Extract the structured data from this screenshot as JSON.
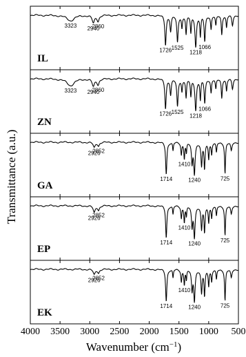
{
  "chart_data": {
    "type": "line",
    "xlabel": "Wavenumber (cm",
    "xlabel_sup": "−1",
    "xlabel_close": ")",
    "ylabel": "Transmittance (a.u.)",
    "xlim": [
      4000,
      500
    ],
    "x_reversed": true,
    "xticks": [
      4000,
      3500,
      3000,
      2500,
      2000,
      1500,
      1000,
      500
    ],
    "panels": [
      {
        "label": "IL",
        "peak_labels": [
          "3323",
          "2940",
          "2860",
          "1726",
          "1525",
          "1218",
          "1066"
        ],
        "peaks": [
          {
            "x": 3323,
            "depth": 0.16,
            "width": 110,
            "text": "3323"
          },
          {
            "x": 2940,
            "depth": 0.22,
            "width": 35,
            "text": "2940"
          },
          {
            "x": 2860,
            "depth": 0.16,
            "width": 30,
            "text": "2860"
          },
          {
            "x": 1726,
            "depth": 0.85,
            "width": 20,
            "text": "1726"
          },
          {
            "x": 1640,
            "depth": 0.45,
            "width": 18
          },
          {
            "x": 1525,
            "depth": 0.78,
            "width": 20,
            "text": "1525"
          },
          {
            "x": 1450,
            "depth": 0.35,
            "width": 15
          },
          {
            "x": 1380,
            "depth": 0.55,
            "width": 15
          },
          {
            "x": 1300,
            "depth": 0.5,
            "width": 15
          },
          {
            "x": 1218,
            "depth": 0.9,
            "width": 22,
            "text": "1218"
          },
          {
            "x": 1140,
            "depth": 0.6,
            "width": 15
          },
          {
            "x": 1066,
            "depth": 0.75,
            "width": 18,
            "text": "1066"
          },
          {
            "x": 960,
            "depth": 0.4,
            "width": 15
          },
          {
            "x": 880,
            "depth": 0.3,
            "width": 15
          },
          {
            "x": 780,
            "depth": 0.55,
            "width": 15
          },
          {
            "x": 700,
            "depth": 0.35,
            "width": 15
          },
          {
            "x": 600,
            "depth": 0.3,
            "width": 20
          }
        ]
      },
      {
        "label": "ZN",
        "peak_labels": [
          "3323",
          "2940",
          "2860",
          "1726",
          "1525",
          "1218",
          "1066"
        ],
        "peaks": [
          {
            "x": 3323,
            "depth": 0.2,
            "width": 110,
            "text": "3323"
          },
          {
            "x": 2940,
            "depth": 0.22,
            "width": 35,
            "text": "2940"
          },
          {
            "x": 2860,
            "depth": 0.16,
            "width": 30,
            "text": "2860"
          },
          {
            "x": 1726,
            "depth": 0.85,
            "width": 20,
            "text": "1726"
          },
          {
            "x": 1640,
            "depth": 0.45,
            "width": 18
          },
          {
            "x": 1525,
            "depth": 0.8,
            "width": 20,
            "text": "1525"
          },
          {
            "x": 1450,
            "depth": 0.35,
            "width": 15
          },
          {
            "x": 1380,
            "depth": 0.55,
            "width": 15
          },
          {
            "x": 1300,
            "depth": 0.5,
            "width": 15
          },
          {
            "x": 1218,
            "depth": 0.9,
            "width": 22,
            "text": "1218"
          },
          {
            "x": 1140,
            "depth": 0.6,
            "width": 15
          },
          {
            "x": 1066,
            "depth": 0.7,
            "width": 18,
            "text": "1066"
          },
          {
            "x": 960,
            "depth": 0.4,
            "width": 15
          },
          {
            "x": 880,
            "depth": 0.3,
            "width": 15
          },
          {
            "x": 780,
            "depth": 0.55,
            "width": 15
          },
          {
            "x": 700,
            "depth": 0.35,
            "width": 15
          },
          {
            "x": 600,
            "depth": 0.3,
            "width": 20
          }
        ]
      },
      {
        "label": "GA",
        "peak_labels": [
          "2926",
          "2852",
          "1714",
          "1410",
          "1240",
          "725"
        ],
        "peaks": [
          {
            "x": 2926,
            "depth": 0.16,
            "width": 30,
            "text": "2926"
          },
          {
            "x": 2852,
            "depth": 0.1,
            "width": 25,
            "text": "2852"
          },
          {
            "x": 1714,
            "depth": 0.92,
            "width": 18,
            "text": "1714"
          },
          {
            "x": 1600,
            "depth": 0.25,
            "width": 12
          },
          {
            "x": 1460,
            "depth": 0.35,
            "width": 14
          },
          {
            "x": 1410,
            "depth": 0.45,
            "width": 14,
            "text": "1410"
          },
          {
            "x": 1375,
            "depth": 0.3,
            "width": 12
          },
          {
            "x": 1280,
            "depth": 0.6,
            "width": 18
          },
          {
            "x": 1240,
            "depth": 0.88,
            "width": 20,
            "text": "1240"
          },
          {
            "x": 1120,
            "depth": 0.7,
            "width": 18
          },
          {
            "x": 1070,
            "depth": 0.75,
            "width": 16
          },
          {
            "x": 1000,
            "depth": 0.45,
            "width": 14
          },
          {
            "x": 950,
            "depth": 0.35,
            "width": 14
          },
          {
            "x": 870,
            "depth": 0.3,
            "width": 14
          },
          {
            "x": 725,
            "depth": 0.9,
            "width": 14,
            "text": "725"
          },
          {
            "x": 620,
            "depth": 0.25,
            "width": 20
          }
        ]
      },
      {
        "label": "EP",
        "peak_labels": [
          "2926",
          "2852",
          "1714",
          "1410",
          "1240",
          "725"
        ],
        "peaks": [
          {
            "x": 2926,
            "depth": 0.2,
            "width": 30,
            "text": "2926"
          },
          {
            "x": 2852,
            "depth": 0.12,
            "width": 25,
            "text": "2852"
          },
          {
            "x": 1714,
            "depth": 0.92,
            "width": 18,
            "text": "1714"
          },
          {
            "x": 1600,
            "depth": 0.25,
            "width": 12
          },
          {
            "x": 1460,
            "depth": 0.35,
            "width": 14
          },
          {
            "x": 1410,
            "depth": 0.45,
            "width": 14,
            "text": "1410"
          },
          {
            "x": 1375,
            "depth": 0.3,
            "width": 12
          },
          {
            "x": 1280,
            "depth": 0.6,
            "width": 18
          },
          {
            "x": 1240,
            "depth": 0.88,
            "width": 20,
            "text": "1240"
          },
          {
            "x": 1120,
            "depth": 0.7,
            "width": 18
          },
          {
            "x": 1070,
            "depth": 0.75,
            "width": 16
          },
          {
            "x": 1000,
            "depth": 0.45,
            "width": 14
          },
          {
            "x": 950,
            "depth": 0.35,
            "width": 14
          },
          {
            "x": 870,
            "depth": 0.3,
            "width": 14
          },
          {
            "x": 725,
            "depth": 0.85,
            "width": 14,
            "text": "725"
          },
          {
            "x": 620,
            "depth": 0.25,
            "width": 20
          }
        ]
      },
      {
        "label": "EK",
        "peak_labels": [
          "2926",
          "2852",
          "1714",
          "1410",
          "1240",
          "725"
        ],
        "peaks": [
          {
            "x": 2926,
            "depth": 0.16,
            "width": 30,
            "text": "2926"
          },
          {
            "x": 2852,
            "depth": 0.1,
            "width": 25,
            "text": "2852"
          },
          {
            "x": 1714,
            "depth": 0.92,
            "width": 18,
            "text": "1714"
          },
          {
            "x": 1600,
            "depth": 0.25,
            "width": 12
          },
          {
            "x": 1460,
            "depth": 0.35,
            "width": 14
          },
          {
            "x": 1410,
            "depth": 0.42,
            "width": 14,
            "text": "1410"
          },
          {
            "x": 1375,
            "depth": 0.3,
            "width": 12
          },
          {
            "x": 1280,
            "depth": 0.6,
            "width": 18
          },
          {
            "x": 1240,
            "depth": 0.88,
            "width": 20,
            "text": "1240"
          },
          {
            "x": 1120,
            "depth": 0.7,
            "width": 18
          },
          {
            "x": 1070,
            "depth": 0.75,
            "width": 16
          },
          {
            "x": 1000,
            "depth": 0.45,
            "width": 14
          },
          {
            "x": 950,
            "depth": 0.35,
            "width": 14
          },
          {
            "x": 870,
            "depth": 0.3,
            "width": 14
          },
          {
            "x": 725,
            "depth": 0.9,
            "width": 14,
            "text": "725"
          },
          {
            "x": 620,
            "depth": 0.25,
            "width": 20
          }
        ]
      }
    ]
  }
}
